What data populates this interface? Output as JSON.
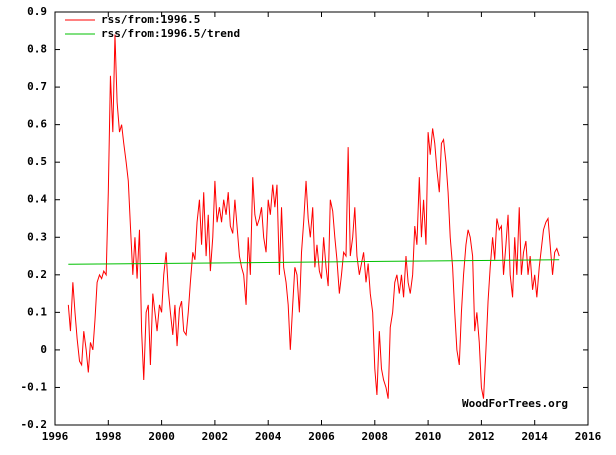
{
  "chart_data": {
    "type": "line",
    "series": [
      {
        "name": "rss/from:1996.5",
        "color": "#ff0000",
        "x": [
          1996.5,
          1996.58,
          1996.67,
          1996.75,
          1996.83,
          1996.92,
          1997,
          1997.08,
          1997.17,
          1997.25,
          1997.33,
          1997.42,
          1997.5,
          1997.58,
          1997.67,
          1997.75,
          1997.83,
          1997.92,
          1998,
          1998.08,
          1998.17,
          1998.25,
          1998.33,
          1998.42,
          1998.5,
          1998.58,
          1998.67,
          1998.75,
          1998.83,
          1998.92,
          1999,
          1999.08,
          1999.17,
          1999.25,
          1999.33,
          1999.42,
          1999.5,
          1999.58,
          1999.67,
          1999.75,
          1999.83,
          1999.92,
          2000,
          2000.08,
          2000.17,
          2000.25,
          2000.33,
          2000.42,
          2000.5,
          2000.58,
          2000.67,
          2000.75,
          2000.83,
          2000.92,
          2001,
          2001.08,
          2001.17,
          2001.25,
          2001.33,
          2001.42,
          2001.5,
          2001.58,
          2001.67,
          2001.75,
          2001.83,
          2001.92,
          2002,
          2002.08,
          2002.17,
          2002.25,
          2002.33,
          2002.42,
          2002.5,
          2002.58,
          2002.67,
          2002.75,
          2002.83,
          2002.92,
          2003,
          2003.08,
          2003.17,
          2003.25,
          2003.33,
          2003.42,
          2003.5,
          2003.58,
          2003.67,
          2003.75,
          2003.83,
          2003.92,
          2004,
          2004.08,
          2004.17,
          2004.25,
          2004.33,
          2004.42,
          2004.5,
          2004.58,
          2004.67,
          2004.75,
          2004.83,
          2004.92,
          2005,
          2005.08,
          2005.17,
          2005.25,
          2005.33,
          2005.42,
          2005.5,
          2005.58,
          2005.67,
          2005.75,
          2005.83,
          2005.92,
          2006,
          2006.08,
          2006.17,
          2006.25,
          2006.33,
          2006.42,
          2006.5,
          2006.58,
          2006.67,
          2006.75,
          2006.83,
          2006.92,
          2007,
          2007.08,
          2007.17,
          2007.25,
          2007.33,
          2007.42,
          2007.5,
          2007.58,
          2007.67,
          2007.75,
          2007.83,
          2007.92,
          2008,
          2008.08,
          2008.17,
          2008.25,
          2008.33,
          2008.42,
          2008.5,
          2008.58,
          2008.67,
          2008.75,
          2008.83,
          2008.92,
          2009,
          2009.08,
          2009.17,
          2009.25,
          2009.33,
          2009.42,
          2009.5,
          2009.58,
          2009.67,
          2009.75,
          2009.83,
          2009.92,
          2010,
          2010.08,
          2010.17,
          2010.25,
          2010.33,
          2010.42,
          2010.5,
          2010.58,
          2010.67,
          2010.75,
          2010.83,
          2010.92,
          2011,
          2011.08,
          2011.17,
          2011.25,
          2011.33,
          2011.42,
          2011.5,
          2011.58,
          2011.67,
          2011.75,
          2011.83,
          2011.92,
          2012,
          2012.08,
          2012.17,
          2012.25,
          2012.33,
          2012.42,
          2012.5,
          2012.58,
          2012.67,
          2012.75,
          2012.83,
          2012.92,
          2013,
          2013.08,
          2013.17,
          2013.25,
          2013.33,
          2013.42,
          2013.5,
          2013.58,
          2013.67,
          2013.75,
          2013.83,
          2013.92,
          2014,
          2014.08,
          2014.17,
          2014.25,
          2014.33,
          2014.42,
          2014.5,
          2014.58,
          2014.67,
          2014.75,
          2014.83,
          2014.92
        ],
        "values": [
          0.12,
          0.05,
          0.18,
          0.1,
          0.03,
          -0.03,
          -0.04,
          0.05,
          0.0,
          -0.06,
          0.02,
          0.0,
          0.08,
          0.18,
          0.2,
          0.19,
          0.21,
          0.2,
          0.42,
          0.73,
          0.58,
          0.84,
          0.66,
          0.58,
          0.6,
          0.55,
          0.5,
          0.45,
          0.33,
          0.2,
          0.3,
          0.19,
          0.32,
          0.05,
          -0.08,
          0.1,
          0.12,
          -0.04,
          0.15,
          0.1,
          0.05,
          0.12,
          0.1,
          0.2,
          0.26,
          0.16,
          0.1,
          0.04,
          0.12,
          0.01,
          0.11,
          0.13,
          0.05,
          0.04,
          0.1,
          0.18,
          0.26,
          0.24,
          0.34,
          0.4,
          0.28,
          0.42,
          0.25,
          0.36,
          0.21,
          0.3,
          0.45,
          0.34,
          0.38,
          0.34,
          0.4,
          0.36,
          0.42,
          0.33,
          0.31,
          0.4,
          0.33,
          0.25,
          0.22,
          0.2,
          0.12,
          0.3,
          0.2,
          0.46,
          0.36,
          0.33,
          0.35,
          0.38,
          0.3,
          0.26,
          0.4,
          0.36,
          0.44,
          0.38,
          0.44,
          0.2,
          0.38,
          0.22,
          0.18,
          0.12,
          0.0,
          0.12,
          0.22,
          0.2,
          0.1,
          0.26,
          0.34,
          0.45,
          0.35,
          0.3,
          0.38,
          0.22,
          0.28,
          0.21,
          0.19,
          0.3,
          0.22,
          0.17,
          0.4,
          0.37,
          0.3,
          0.24,
          0.15,
          0.2,
          0.26,
          0.25,
          0.54,
          0.25,
          0.3,
          0.38,
          0.25,
          0.2,
          0.23,
          0.26,
          0.18,
          0.23,
          0.15,
          0.1,
          -0.05,
          -0.12,
          0.05,
          -0.05,
          -0.08,
          -0.1,
          -0.13,
          0.06,
          0.1,
          0.18,
          0.2,
          0.15,
          0.2,
          0.14,
          0.25,
          0.18,
          0.15,
          0.2,
          0.33,
          0.28,
          0.46,
          0.3,
          0.4,
          0.28,
          0.58,
          0.52,
          0.59,
          0.55,
          0.48,
          0.42,
          0.55,
          0.56,
          0.5,
          0.42,
          0.3,
          0.22,
          0.1,
          0.0,
          -0.04,
          0.1,
          0.2,
          0.28,
          0.32,
          0.3,
          0.25,
          0.05,
          0.1,
          0.02,
          -0.1,
          -0.13,
          0.0,
          0.13,
          0.22,
          0.3,
          0.24,
          0.35,
          0.32,
          0.33,
          0.2,
          0.28,
          0.36,
          0.2,
          0.14,
          0.3,
          0.2,
          0.38,
          0.2,
          0.26,
          0.29,
          0.2,
          0.25,
          0.16,
          0.2,
          0.14,
          0.22,
          0.27,
          0.32,
          0.34,
          0.35,
          0.28,
          0.2,
          0.26,
          0.27,
          0.25
        ]
      },
      {
        "name": "rss/from:1996.5/trend",
        "color": "#00c000",
        "x": [
          1996.5,
          2014.92
        ],
        "values": [
          0.228,
          0.24
        ]
      }
    ],
    "xlim": [
      1996,
      2016
    ],
    "xticks": [
      1996,
      1998,
      2000,
      2002,
      2004,
      2006,
      2008,
      2010,
      2012,
      2014,
      2016
    ],
    "ylim": [
      -0.2,
      0.9
    ],
    "yticks": [
      -0.2,
      -0.1,
      0,
      0.1,
      0.2,
      0.3,
      0.4,
      0.5,
      0.6,
      0.7,
      0.8,
      0.9
    ],
    "annotation": "WoodForTrees.org",
    "legend": "upper left",
    "grid": false
  }
}
